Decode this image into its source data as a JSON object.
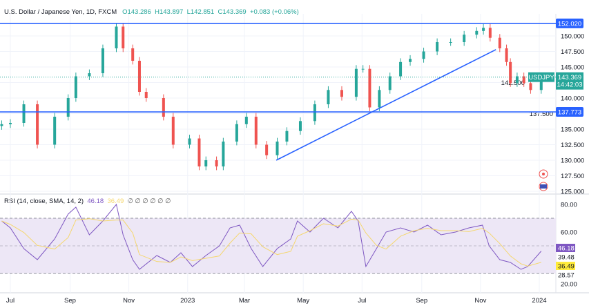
{
  "header": {
    "symbol": "U.S. Dollar / Japanese Yen, 1D, FXCM",
    "open": "O143.286",
    "high": "H143.897",
    "low": "L142.851",
    "close": "C143.369",
    "change": "+0.083 (+0.06%)"
  },
  "rsi_header": {
    "label": "RSI (14, close, SMA, 14, 2)",
    "value": "46.18",
    "sma_value": "36.49",
    "hidden": "∅ ∅ ∅ ∅ ∅ ∅"
  },
  "colors": {
    "up": "#26a69a",
    "down": "#ef5350",
    "lines": "#2962ff",
    "rsi": "#7e57c2",
    "sma": "#f5d76e",
    "band": "#ede7f6"
  },
  "icons": [
    "target-icon",
    "us-flag-icon"
  ],
  "chart_data": [
    {
      "type": "candlestick",
      "symbol": "USDJPY",
      "ylim": [
        125,
        152.5
      ],
      "yticks": [
        "125.000",
        "127.500",
        "130.000",
        "132.500",
        "135.000",
        "137.500",
        "140.000",
        "142.500",
        "145.000",
        "147.500",
        "150.000"
      ],
      "xticks": [
        [
          "2022-07-01",
          "Jul"
        ],
        [
          "2022-09-01",
          "Sep"
        ],
        [
          "2022-11-01",
          "Nov"
        ],
        [
          "2023-01-01",
          "2023"
        ],
        [
          "2023-03-01",
          "Mar"
        ],
        [
          "2023-05-01",
          "May"
        ],
        [
          "2023-07-01",
          "Jul"
        ],
        [
          "2023-09-01",
          "Sep"
        ],
        [
          "2023-11-01",
          "Nov"
        ],
        [
          "2024-01-01",
          "2024"
        ]
      ],
      "closes": [
        [
          "2022-06-22",
          135.8
        ],
        [
          "2022-07-01",
          136
        ],
        [
          "2022-07-15",
          139
        ],
        [
          "2022-07-29",
          132.5
        ],
        [
          "2022-08-16",
          137
        ],
        [
          "2022-08-30",
          140
        ],
        [
          "2022-09-07",
          143.5
        ],
        [
          "2022-09-21",
          144
        ],
        [
          "2022-10-05",
          148
        ],
        [
          "2022-10-19",
          151.5
        ],
        [
          "2022-10-26",
          148
        ],
        [
          "2022-11-05",
          146
        ],
        [
          "2022-11-12",
          141
        ],
        [
          "2022-11-19",
          140
        ],
        [
          "2022-12-07",
          137
        ],
        [
          "2022-12-17",
          132.5
        ],
        [
          "2023-01-03",
          133.5
        ],
        [
          "2023-01-13",
          129
        ],
        [
          "2023-01-20",
          130
        ],
        [
          "2023-01-31",
          129
        ],
        [
          "2023-02-07",
          133
        ],
        [
          "2023-02-21",
          135.8
        ],
        [
          "2023-03-03",
          137
        ],
        [
          "2023-03-13",
          132.5
        ],
        [
          "2023-03-24",
          130.8
        ],
        [
          "2023-04-04",
          133
        ],
        [
          "2023-04-14",
          134.7
        ],
        [
          "2023-04-28",
          136.3
        ],
        [
          "2023-05-13",
          139
        ],
        [
          "2023-05-27",
          141.3
        ],
        [
          "2023-06-10",
          140.2
        ],
        [
          "2023-06-25",
          144.7
        ],
        [
          "2023-07-02",
          144.7
        ],
        [
          "2023-07-09",
          138.5
        ],
        [
          "2023-07-19",
          141.3
        ],
        [
          "2023-07-30",
          143.5
        ],
        [
          "2023-08-10",
          145.8
        ],
        [
          "2023-08-20",
          146.3
        ],
        [
          "2023-09-03",
          147.5
        ],
        [
          "2023-09-17",
          149
        ],
        [
          "2023-10-01",
          149
        ],
        [
          "2023-10-15",
          150.2
        ],
        [
          "2023-10-28",
          150.8
        ],
        [
          "2023-11-04",
          151.3
        ],
        [
          "2023-11-11",
          149.7
        ],
        [
          "2023-11-21",
          148
        ],
        [
          "2023-11-28",
          145.8
        ],
        [
          "2023-12-02",
          142.4
        ],
        [
          "2023-12-09",
          143.5
        ],
        [
          "2023-12-16",
          142.4
        ],
        [
          "2023-12-23",
          141.3
        ],
        [
          "2024-01-03",
          143.369
        ]
      ],
      "horizontal_lines": [
        {
          "price": 152.02,
          "label": "152.020"
        },
        {
          "price": 137.773,
          "label": "137.773"
        }
      ],
      "trendline": [
        [
          "2023-04-03",
          130.0
        ],
        [
          "2023-11-17",
          147.8
        ]
      ],
      "last_price": {
        "label": "USDJPY",
        "price": "143.369",
        "countdown": "14:42:03"
      }
    },
    {
      "type": "line",
      "name": "RSI",
      "ylim": [
        20,
        80
      ],
      "yticks": [
        "80.00",
        "60.00",
        "20.00"
      ],
      "bands": [
        30,
        70
      ],
      "labels": {
        "rsi": "46.18",
        "upper": "39.48",
        "sma": "36.49",
        "lower": "28.57"
      },
      "values": [
        [
          "2022-06-22",
          68
        ],
        [
          "2022-07-01",
          63
        ],
        [
          "2022-07-15",
          48
        ],
        [
          "2022-07-29",
          40
        ],
        [
          "2022-08-16",
          55
        ],
        [
          "2022-08-30",
          73
        ],
        [
          "2022-09-07",
          78
        ],
        [
          "2022-09-21",
          58
        ],
        [
          "2022-10-05",
          68
        ],
        [
          "2022-10-19",
          80
        ],
        [
          "2022-10-26",
          58
        ],
        [
          "2022-11-05",
          40
        ],
        [
          "2022-11-12",
          33
        ],
        [
          "2022-11-30",
          43
        ],
        [
          "2022-12-14",
          38
        ],
        [
          "2022-12-25",
          45
        ],
        [
          "2023-01-06",
          35
        ],
        [
          "2023-01-20",
          43
        ],
        [
          "2023-02-03",
          50
        ],
        [
          "2023-02-14",
          63
        ],
        [
          "2023-02-24",
          65
        ],
        [
          "2023-03-08",
          48
        ],
        [
          "2023-03-20",
          35
        ],
        [
          "2023-04-04",
          48
        ],
        [
          "2023-04-18",
          55
        ],
        [
          "2023-04-25",
          68
        ],
        [
          "2023-05-08",
          60
        ],
        [
          "2023-05-22",
          70
        ],
        [
          "2023-06-06",
          63
        ],
        [
          "2023-06-20",
          75
        ],
        [
          "2023-06-27",
          68
        ],
        [
          "2023-07-05",
          35
        ],
        [
          "2023-07-16",
          48
        ],
        [
          "2023-07-26",
          60
        ],
        [
          "2023-08-10",
          63
        ],
        [
          "2023-08-24",
          60
        ],
        [
          "2023-09-07",
          65
        ],
        [
          "2023-09-21",
          58
        ],
        [
          "2023-10-06",
          60
        ],
        [
          "2023-10-20",
          63
        ],
        [
          "2023-11-03",
          65
        ],
        [
          "2023-11-10",
          50
        ],
        [
          "2023-11-21",
          40
        ],
        [
          "2023-12-02",
          38
        ],
        [
          "2023-12-13",
          33
        ],
        [
          "2023-12-20",
          35
        ],
        [
          "2024-01-03",
          46.18
        ]
      ]
    }
  ]
}
